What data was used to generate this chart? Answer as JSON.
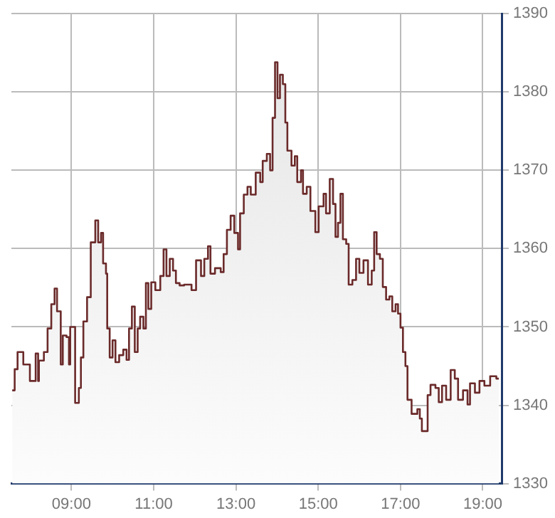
{
  "chart_data": {
    "type": "area",
    "x": [
      7.56,
      7.62,
      7.62,
      7.69,
      7.69,
      7.83,
      7.83,
      7.99,
      7.99,
      8.13,
      8.13,
      8.19,
      8.19,
      8.21,
      8.21,
      8.33,
      8.33,
      8.42,
      8.42,
      8.51,
      8.51,
      8.59,
      8.59,
      8.65,
      8.65,
      8.74,
      8.74,
      8.79,
      8.79,
      8.88,
      8.88,
      8.94,
      8.94,
      8.97,
      8.97,
      9.06,
      9.06,
      9.09,
      9.09,
      9.18,
      9.18,
      9.23,
      9.23,
      9.29,
      9.29,
      9.38,
      9.38,
      9.47,
      9.47,
      9.58,
      9.58,
      9.65,
      9.65,
      9.72,
      9.72,
      9.77,
      9.77,
      9.84,
      9.84,
      9.87,
      9.87,
      9.93,
      9.93,
      10.0,
      10.0,
      10.07,
      10.07,
      10.16,
      10.16,
      10.26,
      10.26,
      10.34,
      10.34,
      10.4,
      10.4,
      10.47,
      10.47,
      10.54,
      10.54,
      10.61,
      10.61,
      10.67,
      10.67,
      10.75,
      10.75,
      10.81,
      10.81,
      10.87,
      10.87,
      10.94,
      10.94,
      11.04,
      11.04,
      11.16,
      11.16,
      11.24,
      11.24,
      11.31,
      11.31,
      11.39,
      11.39,
      11.47,
      11.47,
      11.54,
      11.54,
      11.63,
      11.63,
      11.74,
      11.74,
      11.92,
      11.92,
      12.03,
      12.03,
      12.15,
      12.15,
      12.23,
      12.23,
      12.32,
      12.32,
      12.38,
      12.38,
      12.49,
      12.49,
      12.63,
      12.63,
      12.7,
      12.7,
      12.78,
      12.78,
      12.87,
      12.87,
      12.96,
      12.96,
      13.05,
      13.05,
      13.1,
      13.1,
      13.19,
      13.19,
      13.28,
      13.28,
      13.36,
      13.36,
      13.48,
      13.48,
      13.59,
      13.59,
      13.65,
      13.65,
      13.75,
      13.75,
      13.83,
      13.83,
      13.89,
      13.89,
      13.95,
      13.95,
      14.01,
      14.01,
      14.07,
      14.07,
      14.14,
      14.14,
      14.2,
      14.2,
      14.25,
      14.25,
      14.35,
      14.35,
      14.43,
      14.43,
      14.49,
      14.49,
      14.58,
      14.58,
      14.63,
      14.63,
      14.72,
      14.72,
      14.81,
      14.81,
      14.93,
      14.93,
      15.01,
      15.01,
      15.13,
      15.13,
      15.19,
      15.19,
      15.28,
      15.28,
      15.36,
      15.36,
      15.42,
      15.42,
      15.48,
      15.48,
      15.54,
      15.54,
      15.6,
      15.6,
      15.68,
      15.68,
      15.74,
      15.74,
      15.83,
      15.83,
      15.92,
      15.92,
      16.0,
      16.0,
      16.1,
      16.1,
      16.21,
      16.21,
      16.3,
      16.3,
      16.36,
      16.36,
      16.42,
      16.42,
      16.5,
      16.5,
      16.57,
      16.57,
      16.65,
      16.65,
      16.73,
      16.73,
      16.8,
      16.8,
      16.88,
      16.88,
      16.94,
      16.94,
      17.0,
      17.0,
      17.06,
      17.06,
      17.12,
      17.12,
      17.17,
      17.17,
      17.27,
      17.27,
      17.41,
      17.41,
      17.47,
      17.47,
      17.52,
      17.52,
      17.62,
      17.62,
      17.66,
      17.66,
      17.73,
      17.73,
      17.85,
      17.85,
      17.93,
      17.93,
      18.01,
      18.01,
      18.11,
      18.11,
      18.22,
      18.22,
      18.32,
      18.32,
      18.4,
      18.4,
      18.52,
      18.52,
      18.63,
      18.63,
      18.69,
      18.69,
      18.81,
      18.81,
      18.92,
      18.92,
      19.04,
      19.04,
      19.18,
      19.18,
      19.33,
      19.33,
      19.39
    ],
    "series": [
      {
        "color": "#6b2a2a",
        "values": [
          1341.9,
          1341.9,
          1344.6,
          1344.6,
          1346.8,
          1346.8,
          1345.2,
          1345.2,
          1343.1,
          1343.1,
          1346.6,
          1346.6,
          1343.1,
          1343.1,
          1345.7,
          1345.7,
          1346.8,
          1346.8,
          1349.8,
          1349.8,
          1352.9,
          1352.9,
          1354.9,
          1354.9,
          1352,
          1352,
          1345.2,
          1345.2,
          1348.9,
          1348.9,
          1348.7,
          1348.7,
          1345.2,
          1345.2,
          1350,
          1350,
          1350,
          1350,
          1340.3,
          1340.3,
          1342.2,
          1342.2,
          1346.1,
          1346.1,
          1350.7,
          1350.7,
          1353.8,
          1353.8,
          1360.8,
          1360.8,
          1363.6,
          1363.6,
          1360.8,
          1360.8,
          1362,
          1362,
          1358.1,
          1358.1,
          1356.8,
          1356.8,
          1349.8,
          1349.8,
          1346.1,
          1346.1,
          1348.3,
          1348.3,
          1345.5,
          1345.5,
          1346.4,
          1346.4,
          1347.1,
          1347.1,
          1345.8,
          1345.8,
          1349.8,
          1349.8,
          1352.6,
          1352.6,
          1346.8,
          1346.8,
          1349.8,
          1349.8,
          1351.3,
          1351.3,
          1349.8,
          1349.8,
          1355.6,
          1355.6,
          1352.3,
          1352.3,
          1355.7,
          1355.7,
          1354.7,
          1354.7,
          1356.5,
          1356.5,
          1359.9,
          1359.9,
          1356.5,
          1356.5,
          1358.7,
          1358.7,
          1357.2,
          1357.2,
          1355.6,
          1355.6,
          1355.3,
          1355.3,
          1355.4,
          1355.4,
          1354.7,
          1354.7,
          1358.5,
          1358.5,
          1356.5,
          1356.5,
          1358.7,
          1358.7,
          1360.3,
          1360.3,
          1356.8,
          1356.8,
          1357.5,
          1357.5,
          1357,
          1357,
          1359.3,
          1359.3,
          1362.4,
          1362.4,
          1364.2,
          1364.2,
          1362,
          1362,
          1359.9,
          1359.9,
          1364.5,
          1364.5,
          1366.9,
          1366.9,
          1367.9,
          1367.9,
          1366.9,
          1366.9,
          1369.7,
          1369.7,
          1368.5,
          1368.5,
          1371.2,
          1371.2,
          1372.1,
          1372.1,
          1370,
          1370,
          1376.7,
          1376.7,
          1383.8,
          1383.8,
          1379.2,
          1379.2,
          1382.2,
          1382.2,
          1381,
          1381,
          1376.1,
          1376.1,
          1372.5,
          1372.5,
          1370.6,
          1370.6,
          1371.8,
          1371.8,
          1368.5,
          1368.5,
          1370,
          1370,
          1367,
          1367,
          1367.9,
          1367.9,
          1364.8,
          1364.8,
          1362.1,
          1362.1,
          1365.4,
          1365.4,
          1367,
          1367,
          1364.5,
          1364.5,
          1368.9,
          1368.9,
          1365.7,
          1365.7,
          1361.5,
          1361.5,
          1363.3,
          1363.3,
          1367,
          1367,
          1361.2,
          1361.2,
          1360.6,
          1360.6,
          1355.4,
          1355.4,
          1356,
          1356,
          1358.7,
          1358.7,
          1356.9,
          1356.9,
          1358.5,
          1358.5,
          1355.4,
          1355.4,
          1357.2,
          1357.2,
          1362.1,
          1362.1,
          1359.3,
          1359.3,
          1358.7,
          1358.7,
          1355.1,
          1355.1,
          1353.5,
          1353.5,
          1353.9,
          1353.9,
          1352,
          1352,
          1352.9,
          1352.9,
          1351.7,
          1351.7,
          1349.9,
          1349.9,
          1346.8,
          1346.8,
          1345,
          1345,
          1340.7,
          1340.7,
          1338.9,
          1338.9,
          1339.5,
          1339.5,
          1338.3,
          1338.3,
          1336.7,
          1336.7,
          1336.7,
          1336.7,
          1341.3,
          1341.3,
          1342.6,
          1342.6,
          1342.2,
          1342.2,
          1340.4,
          1340.4,
          1342.5,
          1342.5,
          1340.7,
          1340.7,
          1344.5,
          1344.5,
          1343.4,
          1343.4,
          1340.7,
          1340.7,
          1341.9,
          1341.9,
          1340.1,
          1340.1,
          1342.8,
          1342.8,
          1341.6,
          1341.6,
          1343.1,
          1343.1,
          1342.5,
          1342.5,
          1343.7,
          1343.7,
          1343.4,
          1343.4
        ]
      }
    ],
    "xlim": [
      7.54,
      19.46
    ],
    "ylim": [
      1330,
      1390
    ],
    "xticks": [
      {
        "value": 9,
        "label": "09:00"
      },
      {
        "value": 11,
        "label": "11:00"
      },
      {
        "value": 13,
        "label": "13:00"
      },
      {
        "value": 15,
        "label": "15:00"
      },
      {
        "value": 17,
        "label": "17:00"
      },
      {
        "value": 19,
        "label": "19:00"
      }
    ],
    "yticks": [
      1330,
      1340,
      1350,
      1360,
      1370,
      1380,
      1390
    ],
    "grid": true
  }
}
